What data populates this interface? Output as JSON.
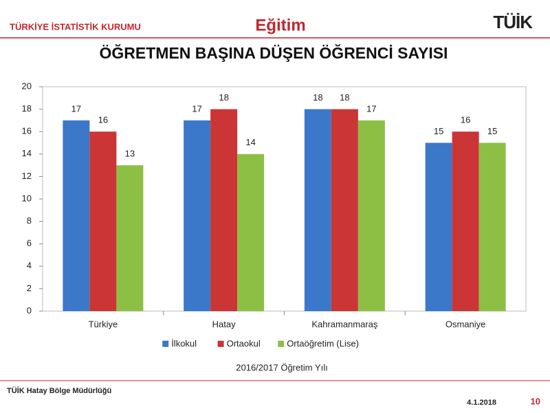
{
  "header": {
    "organization": "TÜRKİYE İSTATİSTİK KURUMU",
    "section": "Eğitim",
    "logo": "TÜİK"
  },
  "chart_data": {
    "type": "bar",
    "title": "ÖĞRETMEN BAŞINA DÜŞEN ÖĞRENCİ SAYISI",
    "categories": [
      "Türkiye",
      "Hatay",
      "Kahramanmaraş",
      "Osmaniye"
    ],
    "series": [
      {
        "name": "İlkokul",
        "color": "#3b78c9",
        "values": [
          17,
          17,
          18,
          15
        ]
      },
      {
        "name": "Ortaokul",
        "color": "#cb3535",
        "values": [
          16,
          18,
          18,
          16
        ]
      },
      {
        "name": "Ortaöğretim (Lise)",
        "color": "#8dbf45",
        "values": [
          13,
          14,
          17,
          15
        ]
      }
    ],
    "ylim": [
      0,
      20
    ],
    "yticks": [
      0,
      2,
      4,
      6,
      8,
      10,
      12,
      14,
      16,
      18,
      20
    ],
    "grid": false,
    "legend": "bottom",
    "caption": "2016/2017 Öğretim Yılı"
  },
  "footer": {
    "office": "TÜİK Hatay Bölge Müdürlüğü",
    "date": "4.1.2018",
    "page": "10"
  }
}
